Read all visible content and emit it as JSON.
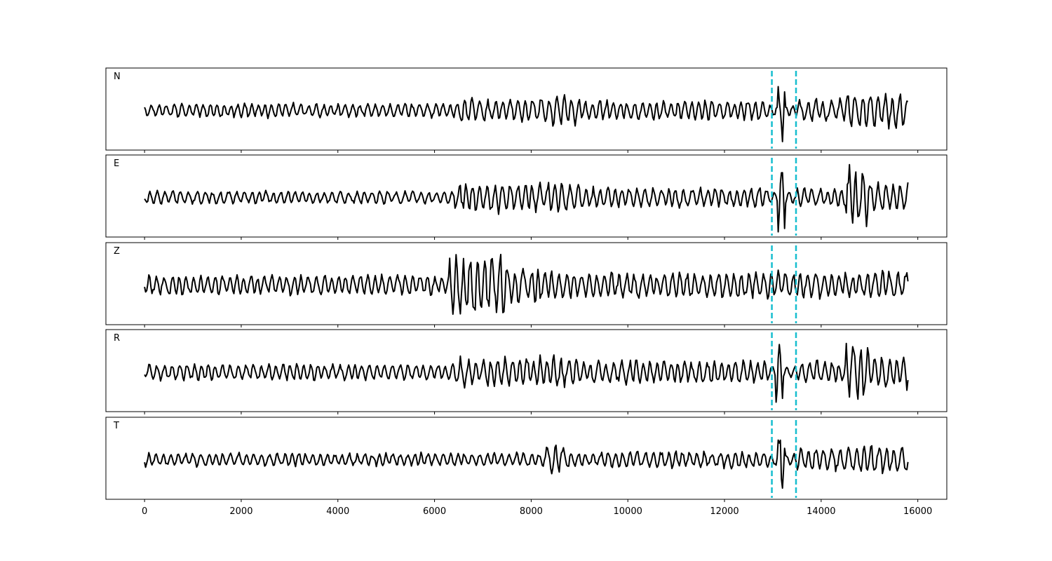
{
  "chart_data": {
    "type": "line",
    "xlim": [
      -800,
      16600
    ],
    "x_ticks": [
      0,
      2000,
      4000,
      6000,
      8000,
      10000,
      12000,
      14000,
      16000
    ],
    "x_tick_labels": [
      "0",
      "2000",
      "4000",
      "6000",
      "8000",
      "10000",
      "12000",
      "14000",
      "16000"
    ],
    "grid": false,
    "line_color": "#000000",
    "marker_color": "#17becf",
    "marker_lines_x": [
      12980,
      13480
    ],
    "sample_count": 15800,
    "panels": [
      {
        "label": "N",
        "description": "noise with bursts; largest spike near 13150",
        "segments": [
          {
            "x_start": 0,
            "x_end": 6500,
            "amplitude": 0.22
          },
          {
            "x_start": 6500,
            "x_end": 8400,
            "amplitude": 0.35
          },
          {
            "x_start": 8400,
            "x_end": 9000,
            "amplitude": 0.45
          },
          {
            "x_start": 9000,
            "x_end": 12900,
            "amplitude": 0.3
          },
          {
            "x_start": 13100,
            "x_end": 13250,
            "amplitude": 1.0
          },
          {
            "x_start": 13500,
            "x_end": 14500,
            "amplitude": 0.35
          },
          {
            "x_start": 14500,
            "x_end": 15800,
            "amplitude": 0.55
          }
        ]
      },
      {
        "label": "E",
        "description": "moderate noise; spike near 13150 and large swing near 14700",
        "segments": [
          {
            "x_start": 0,
            "x_end": 6400,
            "amplitude": 0.2
          },
          {
            "x_start": 6400,
            "x_end": 9000,
            "amplitude": 0.45
          },
          {
            "x_start": 9000,
            "x_end": 12900,
            "amplitude": 0.3
          },
          {
            "x_start": 13100,
            "x_end": 13250,
            "amplitude": 1.0
          },
          {
            "x_start": 13500,
            "x_end": 14500,
            "amplitude": 0.3
          },
          {
            "x_start": 14500,
            "x_end": 15000,
            "amplitude": 0.9
          },
          {
            "x_start": 15000,
            "x_end": 15800,
            "amplitude": 0.45
          }
        ]
      },
      {
        "label": "Z",
        "description": "large bursts near 6700 and 7300",
        "segments": [
          {
            "x_start": 0,
            "x_end": 6300,
            "amplitude": 0.3
          },
          {
            "x_start": 6300,
            "x_end": 7500,
            "amplitude": 1.0
          },
          {
            "x_start": 7500,
            "x_end": 8200,
            "amplitude": 0.55
          },
          {
            "x_start": 8200,
            "x_end": 15800,
            "amplitude": 0.4
          }
        ]
      },
      {
        "label": "R",
        "description": "spike near 13100 and large swing near 14700",
        "segments": [
          {
            "x_start": 0,
            "x_end": 6400,
            "amplitude": 0.25
          },
          {
            "x_start": 6400,
            "x_end": 9000,
            "amplitude": 0.45
          },
          {
            "x_start": 9000,
            "x_end": 12900,
            "amplitude": 0.35
          },
          {
            "x_start": 13050,
            "x_end": 13200,
            "amplitude": 1.0
          },
          {
            "x_start": 13500,
            "x_end": 14500,
            "amplitude": 0.35
          },
          {
            "x_start": 14500,
            "x_end": 15000,
            "amplitude": 0.9
          },
          {
            "x_start": 15000,
            "x_end": 15800,
            "amplitude": 0.5
          }
        ]
      },
      {
        "label": "T",
        "description": "spike near 13150, moderate activity after 14500",
        "segments": [
          {
            "x_start": 0,
            "x_end": 8300,
            "amplitude": 0.2
          },
          {
            "x_start": 8300,
            "x_end": 8700,
            "amplitude": 0.45
          },
          {
            "x_start": 8700,
            "x_end": 12900,
            "amplitude": 0.25
          },
          {
            "x_start": 13100,
            "x_end": 13250,
            "amplitude": 1.0
          },
          {
            "x_start": 13500,
            "x_end": 14500,
            "amplitude": 0.35
          },
          {
            "x_start": 14500,
            "x_end": 15800,
            "amplitude": 0.45
          }
        ]
      }
    ]
  }
}
